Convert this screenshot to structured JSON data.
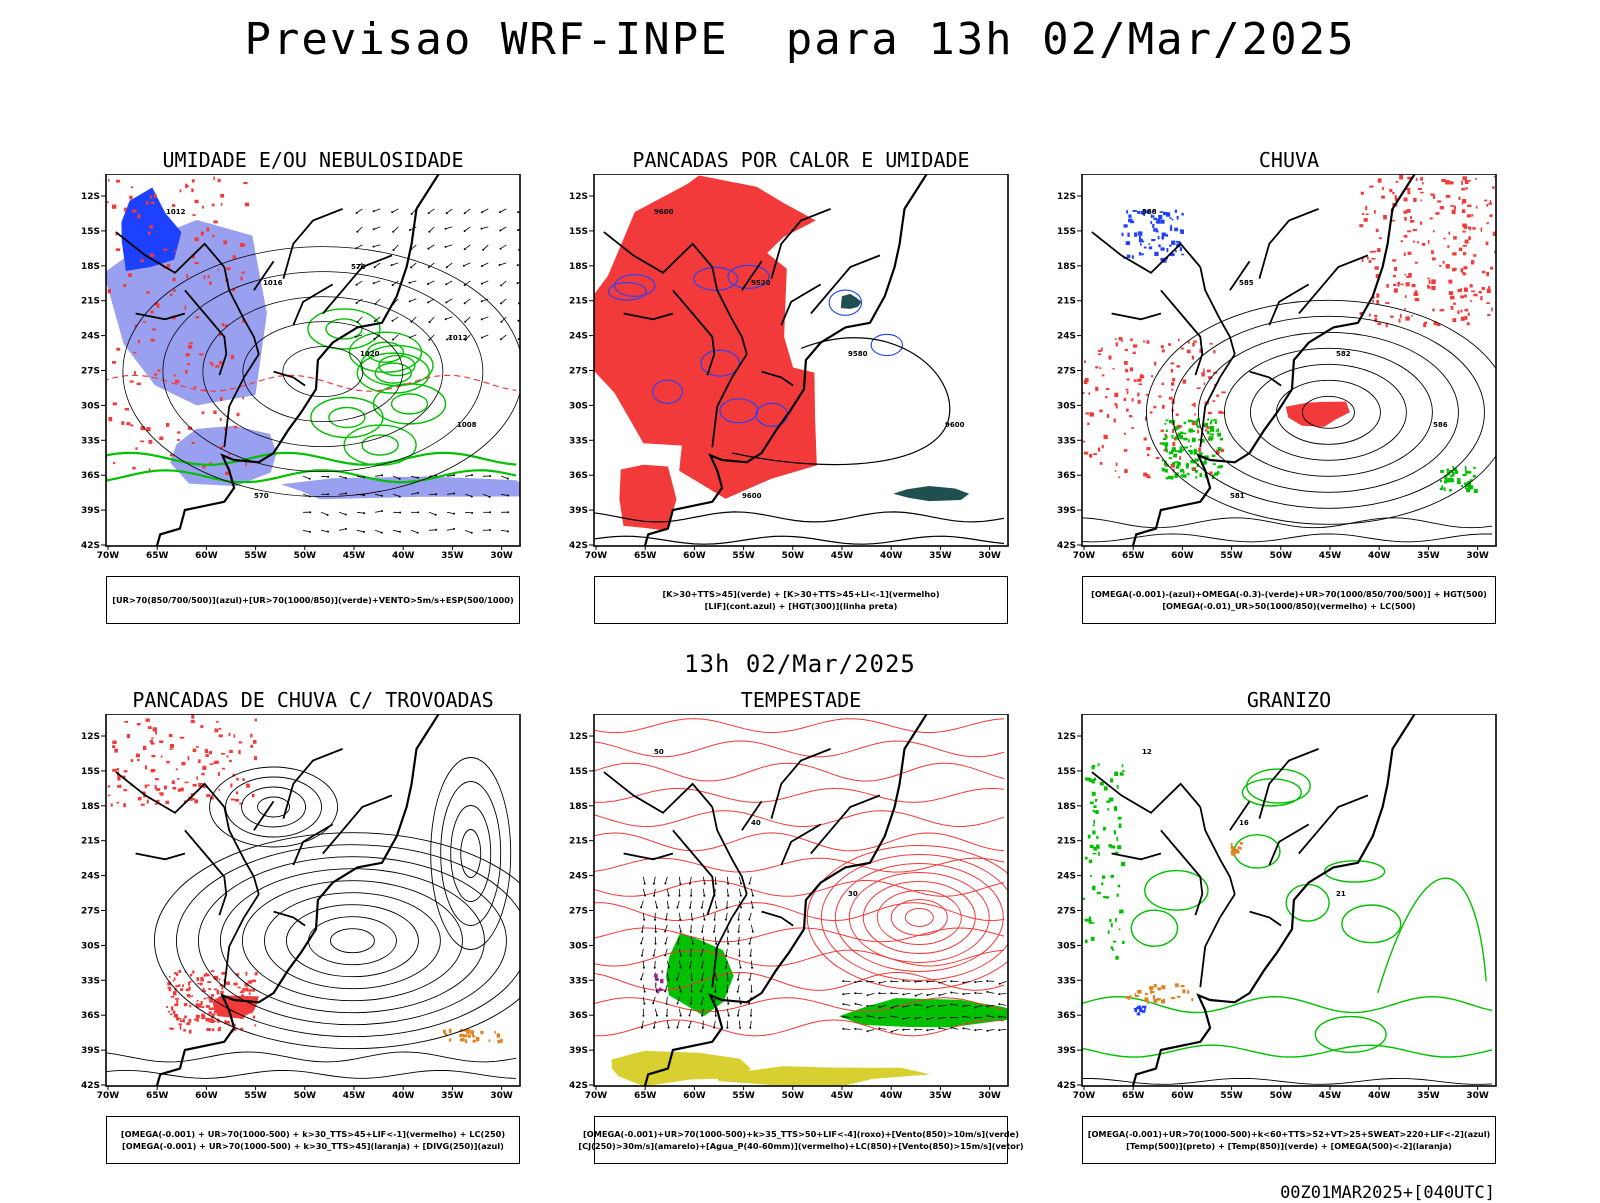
{
  "title": "Previsao WRF-INPE  para 13h 02/Mar/2025",
  "middle_title": "13h 02/Mar/2025",
  "footer": "00Z01MAR2025+[040UTC]",
  "colors": {
    "red": "#f23a3a",
    "green": "#00c000",
    "blue": "#1e40ff",
    "lightblue": "#9aa0f0",
    "darkteal": "#1f4f4f",
    "yellow": "#d8d030",
    "orange": "#e08020",
    "purple": "#a020a0"
  },
  "chart_data": [
    {
      "type": "map",
      "title": "UMIDADE E/OU NEBULOSIDADE",
      "lat_ticks": [
        "12S",
        "15S",
        "18S",
        "21S",
        "24S",
        "27S",
        "30S",
        "33S",
        "36S",
        "39S",
        "42S"
      ],
      "lon_ticks": [
        "70W",
        "65W",
        "60W",
        "55W",
        "50W",
        "45W",
        "40W",
        "35W",
        "30W"
      ],
      "contour_labels": [
        "1012",
        "1016",
        "1020",
        "1008",
        "570",
        "570",
        "1012"
      ],
      "legend": [
        "[UR>70(850/700/500)](azul)+[UR>70(1000/850)](verde)+VENTO>5m/s+ESP(500/1000)"
      ]
    },
    {
      "type": "map",
      "title": "PANCADAS POR CALOR E UMIDADE",
      "lat_ticks": [
        "12S",
        "15S",
        "18S",
        "21S",
        "24S",
        "27S",
        "30S",
        "33S",
        "36S",
        "39S",
        "42S"
      ],
      "lon_ticks": [
        "70W",
        "65W",
        "60W",
        "55W",
        "50W",
        "45W",
        "40W",
        "35W",
        "30W"
      ],
      "contour_labels": [
        "9600",
        "9520",
        "9580",
        "9600",
        "9600"
      ],
      "legend": [
        "[K>30+TTS>45](verde) + [K>30+TTS>45+LI<-1](vermelho)",
        "[LIF](cont.azul) + [HGT(300)](linha preta)"
      ]
    },
    {
      "type": "map",
      "title": "CHUVA",
      "lat_ticks": [
        "12S",
        "15S",
        "18S",
        "21S",
        "24S",
        "27S",
        "30S",
        "33S",
        "36S",
        "39S",
        "42S"
      ],
      "lon_ticks": [
        "70W",
        "65W",
        "60W",
        "55W",
        "50W",
        "45W",
        "40W",
        "35W",
        "30W"
      ],
      "contour_labels": [
        "588",
        "585",
        "582",
        "586",
        "581"
      ],
      "legend": [
        "[OMEGA(-0.001)-(azul)+OMEGA(-0.3)-(verde)+UR>70(1000/850/700/500)] + HGT(500)",
        "[OMEGA(-0.01)_UR>50(1000/850)(vermelho) + LC(500)"
      ]
    },
    {
      "type": "map",
      "title": "PANCADAS DE CHUVA C/ TROVOADAS",
      "lat_ticks": [
        "12S",
        "15S",
        "18S",
        "21S",
        "24S",
        "27S",
        "30S",
        "33S",
        "36S",
        "39S",
        "42S"
      ],
      "lon_ticks": [
        "70W",
        "65W",
        "60W",
        "55W",
        "50W",
        "45W",
        "40W",
        "35W",
        "30W"
      ],
      "contour_labels": [],
      "legend": [
        "[OMEGA(-0.001) + UR>70(1000-500) + k>30_TTS>45+LIF<-1](vermelho) + LC(250)",
        "[OMEGA(-0.001) + UR>70(1000-500) + k>30_TTS>45](laranja) + [DIVG(250)](azul)"
      ]
    },
    {
      "type": "map",
      "title": "TEMPESTADE",
      "lat_ticks": [
        "12S",
        "15S",
        "18S",
        "21S",
        "24S",
        "27S",
        "30S",
        "33S",
        "36S",
        "39S",
        "42S"
      ],
      "lon_ticks": [
        "70W",
        "65W",
        "60W",
        "55W",
        "50W",
        "45W",
        "40W",
        "35W",
        "30W"
      ],
      "contour_labels": [
        "50",
        "40",
        "30"
      ],
      "legend": [
        "[OMEGA(-0.001)+UR>70(1000-500)+k>35_TTS>50+LIF<-4](roxo)+[Vento(850)>10m/s](verde)",
        "[CJ(250)>30m/s](amarelo)+[Agua_P(40-60mm)](vermelho)+LC(850)+[Vento(850)>15m/s](vetor)"
      ]
    },
    {
      "type": "map",
      "title": "GRANIZO",
      "lat_ticks": [
        "12S",
        "15S",
        "18S",
        "21S",
        "24S",
        "27S",
        "30S",
        "33S",
        "36S",
        "39S",
        "42S"
      ],
      "lon_ticks": [
        "70W",
        "65W",
        "60W",
        "55W",
        "50W",
        "45W",
        "40W",
        "35W",
        "30W"
      ],
      "contour_labels": [
        "12",
        "16",
        "21"
      ],
      "legend": [
        "[OMEGA(-0.001)+UR>70(1000-500)+k<60+TTS>52+VT>25+SWEAT>220+LIF<-2](azul)",
        "[Temp(500)](preto) + [Temp(850)](verde) + [OMEGA(500)<-2](laranja)"
      ]
    }
  ]
}
